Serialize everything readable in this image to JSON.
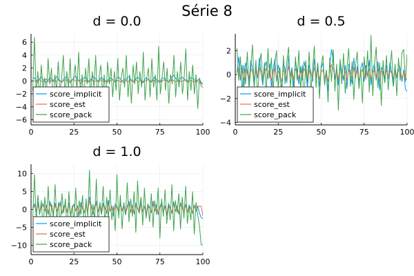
{
  "figure": {
    "title": "Série 8",
    "series_colors": {
      "score_implicit": "#009AFA",
      "score_est": "#E26F46",
      "score_pack": "#3DA44D"
    },
    "legend_placement": "bottom-left"
  },
  "chart_data": [
    {
      "type": "line",
      "title": "d = 0.0",
      "xlim": [
        0,
        100
      ],
      "ylim": [
        -6.8,
        7.3
      ],
      "xticks": [
        0,
        25,
        50,
        75,
        100
      ],
      "yticks": [
        -6,
        -4,
        -2,
        0,
        2,
        4,
        6
      ],
      "grid": true,
      "legend": "bottom-left",
      "series": [
        {
          "name": "score_implicit",
          "color": "#009AFA",
          "values": [
            0.3,
            0.5,
            0.1,
            -0.2,
            0.4,
            0.6,
            0.2,
            0.1,
            -0.3,
            0.2,
            0.5,
            0.3,
            -0.1,
            0.4,
            0.7,
            0.2,
            0.0,
            -0.2,
            0.3,
            0.6,
            0.4,
            0.1,
            -0.3,
            0.2,
            0.5,
            0.8,
            0.3,
            0.0,
            -0.4,
            0.2,
            0.6,
            0.4,
            0.1,
            -0.2,
            0.3,
            0.7,
            0.5,
            0.2,
            -0.1,
            0.3,
            0.6,
            0.2,
            0.0,
            -0.3,
            0.2,
            0.5,
            0.3,
            0.1,
            -0.2,
            0.4,
            0.6,
            0.3,
            0.0,
            -0.3,
            0.1,
            0.5,
            0.7,
            0.3,
            0.0,
            -0.2,
            0.3,
            0.6,
            0.4,
            0.1,
            -0.3,
            0.2,
            0.5,
            0.3,
            0.0,
            -0.2,
            0.4,
            0.6,
            0.2,
            0.0,
            -0.3,
            0.3,
            0.5,
            0.4,
            0.1,
            -0.2,
            0.3,
            0.7,
            0.9,
            0.5,
            0.2,
            -0.1,
            0.4,
            0.6,
            0.3,
            0.1,
            -0.2,
            0.3,
            0.5,
            0.4,
            0.2,
            0.0,
            0.1,
            0.3,
            -0.2,
            -0.5
          ]
        },
        {
          "name": "score_est",
          "color": "#E26F46",
          "values": [
            0.1,
            0.0,
            -0.1,
            0.1,
            0.2,
            0.0,
            -0.1,
            0.1,
            0.3,
            0.0,
            -0.2,
            0.1,
            0.2,
            0.0,
            -0.1,
            0.2,
            0.1,
            -0.1,
            0.0,
            0.2,
            0.1,
            -0.2,
            0.0,
            0.1,
            0.3,
            0.0,
            -0.1,
            0.1,
            0.2,
            -0.1,
            0.0,
            0.1,
            -0.2,
            0.0,
            0.2,
            0.1,
            -0.1,
            0.0,
            0.1,
            -0.1,
            0.2,
            0.0,
            -0.1,
            0.1,
            0.0,
            -0.2,
            0.1,
            0.2,
            0.0,
            -0.1,
            0.1,
            0.0,
            -0.2,
            0.1,
            0.2,
            0.0,
            -0.1,
            0.1,
            0.0,
            -0.1,
            0.2,
            0.1,
            -0.1,
            0.0,
            0.1,
            -0.2,
            0.0,
            0.1,
            0.2,
            0.0,
            -0.1,
            0.1,
            0.0,
            -0.2,
            0.1,
            0.0,
            -0.1,
            0.2,
            0.1,
            0.0,
            -0.1,
            0.1,
            0.2,
            0.0,
            -0.1,
            0.0,
            0.1,
            -0.1,
            0.0,
            0.1,
            0.2,
            0.0,
            -0.1,
            0.1,
            0.0,
            -0.2,
            0.0,
            -0.1,
            -0.3,
            -0.4,
            -0.5
          ]
        },
        {
          "name": "score_pack",
          "color": "#3DA44D",
          "values": [
            -1.5,
            6.8,
            -2.0,
            1.5,
            -3.0,
            2.5,
            -1.0,
            0.5,
            -2.5,
            3.5,
            -0.5,
            2.0,
            -3.5,
            1.0,
            -1.5,
            3.0,
            -2.0,
            0.5,
            4.0,
            -2.5,
            1.5,
            -1.0,
            3.5,
            -3.0,
            0.5,
            2.5,
            -1.5,
            4.5,
            -2.0,
            1.0,
            -3.5,
            2.0,
            -0.5,
            3.5,
            -2.5,
            1.5,
            -1.0,
            4.0,
            -3.0,
            0.5,
            2.5,
            -2.0,
            1.0,
            -3.5,
            3.0,
            -0.5,
            2.0,
            -2.5,
            1.5,
            -1.5,
            3.5,
            -3.0,
            0.5,
            2.0,
            -1.0,
            4.0,
            -2.5,
            1.0,
            -3.5,
            2.5,
            -0.5,
            3.0,
            -2.0,
            1.5,
            -1.0,
            4.5,
            -3.0,
            0.5,
            2.0,
            -2.5,
            3.5,
            -1.0,
            1.0,
            -3.0,
            5.4,
            -2.0,
            0.5,
            3.0,
            -1.5,
            2.0,
            -3.5,
            1.0,
            -0.5,
            4.0,
            -2.5,
            1.5,
            -1.0,
            3.0,
            -2.0,
            0.5,
            5.0,
            -3.0,
            1.5,
            -1.5,
            2.5,
            -2.0,
            1.0,
            -4.3,
            0.5,
            -0.8,
            -1.0
          ]
        }
      ]
    },
    {
      "type": "line",
      "title": "d = 0.5",
      "xlim": [
        0,
        100
      ],
      "ylim": [
        -4.2,
        3.4
      ],
      "xticks": [
        0,
        25,
        50,
        75,
        100
      ],
      "yticks": [
        -4,
        -2,
        0,
        2
      ],
      "grid": true,
      "legend": "bottom-left",
      "series": [
        {
          "name": "score_implicit",
          "color": "#009AFA",
          "values": [
            0.2,
            1.5,
            -0.5,
            0.8,
            -1.2,
            1.0,
            0.3,
            -0.8,
            1.2,
            0.5,
            -1.0,
            0.7,
            -0.3,
            1.4,
            0.2,
            -0.9,
            0.6,
            1.1,
            -0.4,
            0.9,
            -1.1,
            0.4,
            1.3,
            -0.6,
            0.8,
            0.1,
            -1.3,
            0.9,
            0.5,
            -0.7,
            1.6,
            -0.2,
            0.6,
            -1.0,
            1.2,
            0.3,
            -0.8,
            0.7,
            -0.5,
            1.1,
            0.4,
            -1.2,
            0.8,
            0.2,
            -0.6,
            1.3,
            -0.3,
            0.9,
            -1.0,
            0.5,
            1.0,
            -0.7,
            0.4,
            -1.4,
            0.8,
            2.1,
            1.2,
            -0.4,
            0.6,
            -0.9,
            1.1,
            0.3,
            -0.5,
            0.8,
            -1.2,
            0.9,
            0.2,
            -0.8,
            1.4,
            -0.3,
            0.7,
            -1.1,
            0.5,
            1.0,
            -0.6,
            0.8,
            -0.2,
            1.2,
            -0.9,
            0.4,
            0.9,
            -0.5,
            1.1,
            -1.3,
            0.6,
            0.3,
            -0.7,
            0.8,
            -0.4,
            1.0,
            0.2,
            -1.0,
            0.6,
            -0.3,
            0.9,
            0.5,
            -0.6,
            0.4,
            -1.2,
            -1.4
          ]
        },
        {
          "name": "score_est",
          "color": "#E26F46",
          "values": [
            0.1,
            0.5,
            -0.2,
            0.3,
            -0.5,
            0.4,
            0.1,
            -0.3,
            0.5,
            0.2,
            -0.4,
            0.3,
            -0.1,
            0.6,
            0.1,
            -0.4,
            0.2,
            0.5,
            -0.2,
            0.4,
            -0.5,
            0.2,
            0.6,
            -0.3,
            0.3,
            0.0,
            -0.6,
            0.4,
            0.2,
            -0.3,
            0.7,
            -0.1,
            0.3,
            -0.4,
            0.5,
            0.1,
            -0.3,
            0.3,
            -0.2,
            0.5,
            0.2,
            -0.5,
            0.3,
            0.1,
            -0.3,
            0.6,
            -0.1,
            0.4,
            -0.4,
            0.2,
            0.4,
            -0.3,
            0.2,
            -0.6,
            0.3,
            0.8,
            0.5,
            -0.2,
            0.3,
            -0.4,
            0.5,
            0.1,
            -0.2,
            0.3,
            -0.5,
            0.4,
            0.1,
            -0.3,
            0.6,
            -0.1,
            0.3,
            -0.5,
            0.2,
            0.4,
            -0.3,
            0.3,
            -0.1,
            0.5,
            -0.4,
            0.2,
            0.4,
            -0.2,
            0.5,
            -0.6,
            0.3,
            0.1,
            -0.3,
            0.4,
            -0.2,
            0.4,
            0.1,
            -0.4,
            0.3,
            -0.1,
            0.4,
            0.2,
            -0.3,
            0.2,
            -0.5,
            -0.3
          ]
        },
        {
          "name": "score_pack",
          "color": "#3DA44D",
          "values": [
            2.2,
            -0.5,
            1.5,
            -1.5,
            0.8,
            -0.8,
            1.9,
            -1.2,
            0.5,
            2.5,
            -1.0,
            1.2,
            -2.0,
            0.7,
            1.8,
            -0.6,
            1.0,
            -1.8,
            2.2,
            -0.3,
            1.4,
            -1.5,
            0.9,
            2.0,
            -1.2,
            0.6,
            -2.2,
            1.6,
            -0.8,
            1.1,
            2.3,
            -1.0,
            0.4,
            -1.9,
            1.5,
            -0.5,
            2.0,
            -1.3,
            0.8,
            -2.5,
            1.2,
            -0.7,
            1.9,
            -1.5,
            0.5,
            2.4,
            -1.1,
            1.0,
            -2.0,
            0.8,
            1.6,
            -0.9,
            0.3,
            -2.3,
            1.4,
            -0.6,
            2.1,
            -1.4,
            0.9,
            -3.0,
            1.3,
            -0.8,
            1.8,
            -1.6,
            0.6,
            2.2,
            -1.0,
            1.1,
            -2.1,
            0.7,
            1.9,
            -1.2,
            0.5,
            -2.4,
            1.5,
            -0.4,
            2.0,
            -1.5,
            3.3,
            -1.8,
            0.8,
            2.3,
            -1.1,
            1.0,
            -2.6,
            1.2,
            -0.7,
            1.6,
            -1.3,
            0.4,
            2.0,
            -1.0,
            0.9,
            -1.8,
            1.4,
            -0.5,
            1.8,
            2.1,
            -0.6,
            1.7
          ]
        }
      ]
    },
    {
      "type": "line",
      "title": "d = 1.0",
      "xlim": [
        0,
        100
      ],
      "ylim": [
        -12.6,
        12.6
      ],
      "xticks": [
        0,
        25,
        50,
        75,
        100
      ],
      "yticks": [
        -10,
        -5,
        0,
        5,
        10
      ],
      "grid": true,
      "legend": "bottom-left",
      "series": [
        {
          "name": "score_implicit",
          "color": "#009AFA",
          "values": [
            0.5,
            1.5,
            -0.8,
            2.0,
            -1.2,
            0.9,
            1.6,
            -0.5,
            1.2,
            -1.5,
            2.3,
            0.4,
            -1.0,
            1.8,
            -0.6,
            1.0,
            2.1,
            -1.3,
            0.7,
            1.4,
            -0.9,
            1.9,
            -1.6,
            0.8,
            1.5,
            -0.4,
            1.1,
            -1.8,
            2.0,
            0.3,
            -1.1,
            1.6,
            -0.7,
            3.5,
            1.2,
            -1.4,
            0.9,
            2.2,
            -0.8,
            1.3,
            -1.5,
            1.8,
            0.5,
            -1.2,
            2.6,
            -0.6,
            1.0,
            -1.9,
            1.5,
            0.8,
            -1.0,
            2.0,
            -0.5,
            1.4,
            -1.6,
            0.9,
            2.3,
            -0.9,
            1.2,
            -1.3,
            1.7,
            0.4,
            -1.1,
            2.1,
            -0.7,
            1.0,
            -1.8,
            1.4,
            0.6,
            -1.0,
            2.4,
            -0.5,
            1.3,
            -1.5,
            0.8,
            1.9,
            -0.8,
            1.1,
            -1.7,
            1.6,
            0.5,
            -1.2,
            2.2,
            -0.6,
            1.0,
            -1.4,
            1.8,
            0.7,
            -1.0,
            1.5,
            -0.9,
            1.2,
            0.3,
            -1.1,
            1.3,
            -0.5,
            0.9,
            -1.0,
            -2.2,
            -2.6
          ]
        },
        {
          "name": "score_est",
          "color": "#E26F46",
          "values": [
            0.3,
            1.0,
            -0.5,
            1.3,
            -0.8,
            0.6,
            1.1,
            -0.3,
            0.8,
            -1.0,
            1.5,
            0.3,
            -0.7,
            1.2,
            -0.4,
            0.7,
            1.4,
            -0.9,
            0.5,
            0.9,
            -0.6,
            1.3,
            -1.1,
            0.5,
            1.0,
            -0.3,
            0.7,
            -1.2,
            1.3,
            0.2,
            -0.7,
            1.1,
            -0.5,
            2.4,
            0.8,
            -0.9,
            0.6,
            1.5,
            -0.5,
            0.9,
            -1.0,
            1.2,
            0.3,
            -0.8,
            1.7,
            -0.4,
            0.7,
            -1.3,
            1.0,
            0.5,
            -0.7,
            1.3,
            -0.3,
            0.9,
            -1.1,
            0.6,
            1.5,
            -0.6,
            0.8,
            -0.9,
            1.1,
            0.3,
            -0.7,
            1.4,
            -0.5,
            0.7,
            -1.2,
            0.9,
            0.4,
            -0.7,
            1.6,
            -0.3,
            0.9,
            -1.0,
            0.5,
            1.3,
            -0.5,
            0.7,
            -1.1,
            1.1,
            0.3,
            -0.8,
            1.5,
            -0.4,
            0.7,
            -0.9,
            1.2,
            0.5,
            -0.7,
            1.0,
            -0.6,
            0.8,
            0.2,
            -0.7,
            0.9,
            -0.3,
            0.6,
            0.9,
            0.9,
            -1.8
          ]
        },
        {
          "name": "score_pack",
          "color": "#3DA44D",
          "values": [
            -2.0,
            9.8,
            -3.5,
            4.0,
            -1.5,
            2.5,
            -6.0,
            3.5,
            -2.0,
            6.5,
            -4.5,
            1.5,
            -2.5,
            7.0,
            -3.0,
            2.0,
            -5.5,
            4.5,
            -1.0,
            3.0,
            -6.5,
            5.0,
            -2.5,
            1.0,
            -4.0,
            6.0,
            -3.5,
            2.5,
            -1.5,
            4.0,
            -7.5,
            3.0,
            -2.0,
            11.0,
            -4.0,
            1.5,
            -3.0,
            8.5,
            -5.0,
            2.0,
            -1.0,
            6.5,
            -4.5,
            3.5,
            -2.5,
            5.5,
            -3.0,
            1.0,
            -6.0,
            9.8,
            -2.5,
            4.0,
            -5.5,
            2.0,
            -1.5,
            7.5,
            -3.5,
            3.0,
            -2.0,
            5.0,
            -6.5,
            8.0,
            -1.0,
            3.5,
            -4.5,
            6.0,
            -2.5,
            1.5,
            -3.5,
            4.5,
            -5.0,
            2.5,
            -1.5,
            6.0,
            -8.0,
            3.0,
            -2.0,
            5.5,
            -4.0,
            1.5,
            -3.0,
            7.0,
            -6.0,
            2.5,
            -1.0,
            4.5,
            -5.5,
            3.5,
            -2.5,
            6.5,
            -4.0,
            1.0,
            -3.0,
            5.0,
            -7.0,
            2.0,
            -1.5,
            -4.5,
            -9.8,
            -10.0
          ]
        }
      ]
    }
  ]
}
